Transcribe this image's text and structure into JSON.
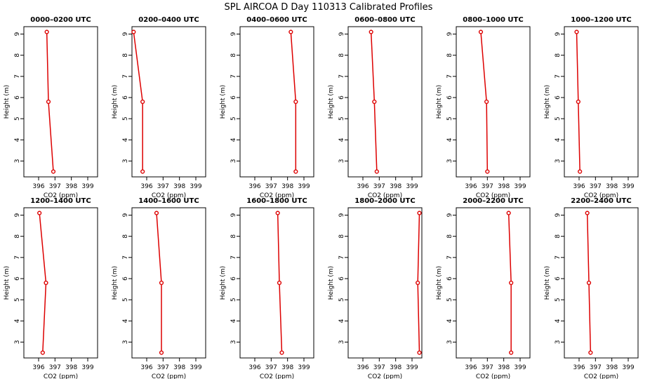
{
  "figure_title": "SPL AIRCOA D  Day 110313  Calibrated Profiles",
  "series_color": "#dd0000",
  "chart_data": [
    {
      "type": "line",
      "title": "0000–0200 UTC",
      "xlabel": "CO2 (ppm)",
      "ylabel": "Height (m)",
      "xlim": [
        395.1,
        399.6
      ],
      "ylim": [
        2.25,
        9.35
      ],
      "xticks": [
        396,
        397,
        398,
        399
      ],
      "yticks": [
        3,
        4,
        5,
        6,
        7,
        8,
        9
      ],
      "heights": [
        9.1,
        5.8,
        2.5
      ],
      "co2": [
        396.5,
        396.6,
        396.9
      ]
    },
    {
      "type": "line",
      "title": "0200–0400 UTC",
      "xlabel": "CO2 (ppm)",
      "ylabel": "Height (m)",
      "xlim": [
        395.1,
        399.6
      ],
      "ylim": [
        2.25,
        9.35
      ],
      "xticks": [
        396,
        397,
        398,
        399
      ],
      "yticks": [
        3,
        4,
        5,
        6,
        7,
        8,
        9
      ],
      "heights": [
        9.1,
        5.8,
        2.5
      ],
      "co2": [
        395.2,
        395.75,
        395.75
      ]
    },
    {
      "type": "line",
      "title": "0400–0600 UTC",
      "xlabel": "CO2 (ppm)",
      "ylabel": "Height (m)",
      "xlim": [
        395.1,
        399.6
      ],
      "ylim": [
        2.25,
        9.35
      ],
      "xticks": [
        396,
        397,
        398,
        399
      ],
      "yticks": [
        3,
        4,
        5,
        6,
        7,
        8,
        9
      ],
      "heights": [
        9.1,
        5.8,
        2.5
      ],
      "co2": [
        398.2,
        398.5,
        398.5
      ]
    },
    {
      "type": "line",
      "title": "0600–0800 UTC",
      "xlabel": "CO2 (ppm)",
      "ylabel": "Height (m)",
      "xlim": [
        395.1,
        399.6
      ],
      "ylim": [
        2.25,
        9.35
      ],
      "xticks": [
        396,
        397,
        398,
        399
      ],
      "yticks": [
        3,
        4,
        5,
        6,
        7,
        8,
        9
      ],
      "heights": [
        9.1,
        5.8,
        2.5
      ],
      "co2": [
        396.5,
        396.7,
        396.85
      ]
    },
    {
      "type": "line",
      "title": "0800–1000 UTC",
      "xlabel": "CO2 (ppm)",
      "ylabel": "Height (m)",
      "xlim": [
        395.1,
        399.6
      ],
      "ylim": [
        2.25,
        9.35
      ],
      "xticks": [
        396,
        397,
        398,
        399
      ],
      "yticks": [
        3,
        4,
        5,
        6,
        7,
        8,
        9
      ],
      "heights": [
        9.1,
        5.8,
        2.5
      ],
      "co2": [
        396.6,
        396.95,
        397.0
      ]
    },
    {
      "type": "line",
      "title": "1000–1200 UTC",
      "xlabel": "CO2 (ppm)",
      "ylabel": "Height (m)",
      "xlim": [
        395.1,
        399.6
      ],
      "ylim": [
        2.25,
        9.35
      ],
      "xticks": [
        396,
        397,
        398,
        399
      ],
      "yticks": [
        3,
        4,
        5,
        6,
        7,
        8,
        9
      ],
      "heights": [
        9.1,
        5.8,
        2.5
      ],
      "co2": [
        395.85,
        395.95,
        396.05
      ]
    },
    {
      "type": "line",
      "title": "1200–1400 UTC",
      "xlabel": "CO2 (ppm)",
      "ylabel": "Height (m)",
      "xlim": [
        395.1,
        399.6
      ],
      "ylim": [
        2.25,
        9.35
      ],
      "xticks": [
        396,
        397,
        398,
        399
      ],
      "yticks": [
        3,
        4,
        5,
        6,
        7,
        8,
        9
      ],
      "heights": [
        9.1,
        5.8,
        2.5
      ],
      "co2": [
        396.05,
        396.45,
        396.25
      ]
    },
    {
      "type": "line",
      "title": "1400–1600 UTC",
      "xlabel": "CO2 (ppm)",
      "ylabel": "Height (m)",
      "xlim": [
        395.1,
        399.6
      ],
      "ylim": [
        2.25,
        9.35
      ],
      "xticks": [
        396,
        397,
        398,
        399
      ],
      "yticks": [
        3,
        4,
        5,
        6,
        7,
        8,
        9
      ],
      "heights": [
        9.1,
        5.8,
        2.5
      ],
      "co2": [
        396.6,
        396.9,
        396.9
      ]
    },
    {
      "type": "line",
      "title": "1600–1800 UTC",
      "xlabel": "CO2 (ppm)",
      "ylabel": "Height (m)",
      "xlim": [
        395.1,
        399.6
      ],
      "ylim": [
        2.25,
        9.35
      ],
      "xticks": [
        396,
        397,
        398,
        399
      ],
      "yticks": [
        3,
        4,
        5,
        6,
        7,
        8,
        9
      ],
      "heights": [
        9.1,
        5.8,
        2.5
      ],
      "co2": [
        397.4,
        397.5,
        397.65
      ]
    },
    {
      "type": "line",
      "title": "1800–2000 UTC",
      "xlabel": "CO2 (ppm)",
      "ylabel": "Height (m)",
      "xlim": [
        395.1,
        399.6
      ],
      "ylim": [
        2.25,
        9.35
      ],
      "xticks": [
        396,
        397,
        398,
        399
      ],
      "yticks": [
        3,
        4,
        5,
        6,
        7,
        8,
        9
      ],
      "heights": [
        9.1,
        5.8,
        2.5
      ],
      "co2": [
        399.45,
        399.35,
        399.45
      ]
    },
    {
      "type": "line",
      "title": "2000–2200 UTC",
      "xlabel": "CO2 (ppm)",
      "ylabel": "Height (m)",
      "xlim": [
        395.1,
        399.6
      ],
      "ylim": [
        2.25,
        9.35
      ],
      "xticks": [
        396,
        397,
        398,
        399
      ],
      "yticks": [
        3,
        4,
        5,
        6,
        7,
        8,
        9
      ],
      "heights": [
        9.1,
        5.8,
        2.5
      ],
      "co2": [
        398.3,
        398.45,
        398.45
      ]
    },
    {
      "type": "line",
      "title": "2200–2400 UTC",
      "xlabel": "CO2 (ppm)",
      "ylabel": "Height (m)",
      "xlim": [
        395.1,
        399.6
      ],
      "ylim": [
        2.25,
        9.35
      ],
      "xticks": [
        396,
        397,
        398,
        399
      ],
      "yticks": [
        3,
        4,
        5,
        6,
        7,
        8,
        9
      ],
      "heights": [
        9.1,
        5.8,
        2.5
      ],
      "co2": [
        396.5,
        396.6,
        396.7
      ]
    }
  ]
}
